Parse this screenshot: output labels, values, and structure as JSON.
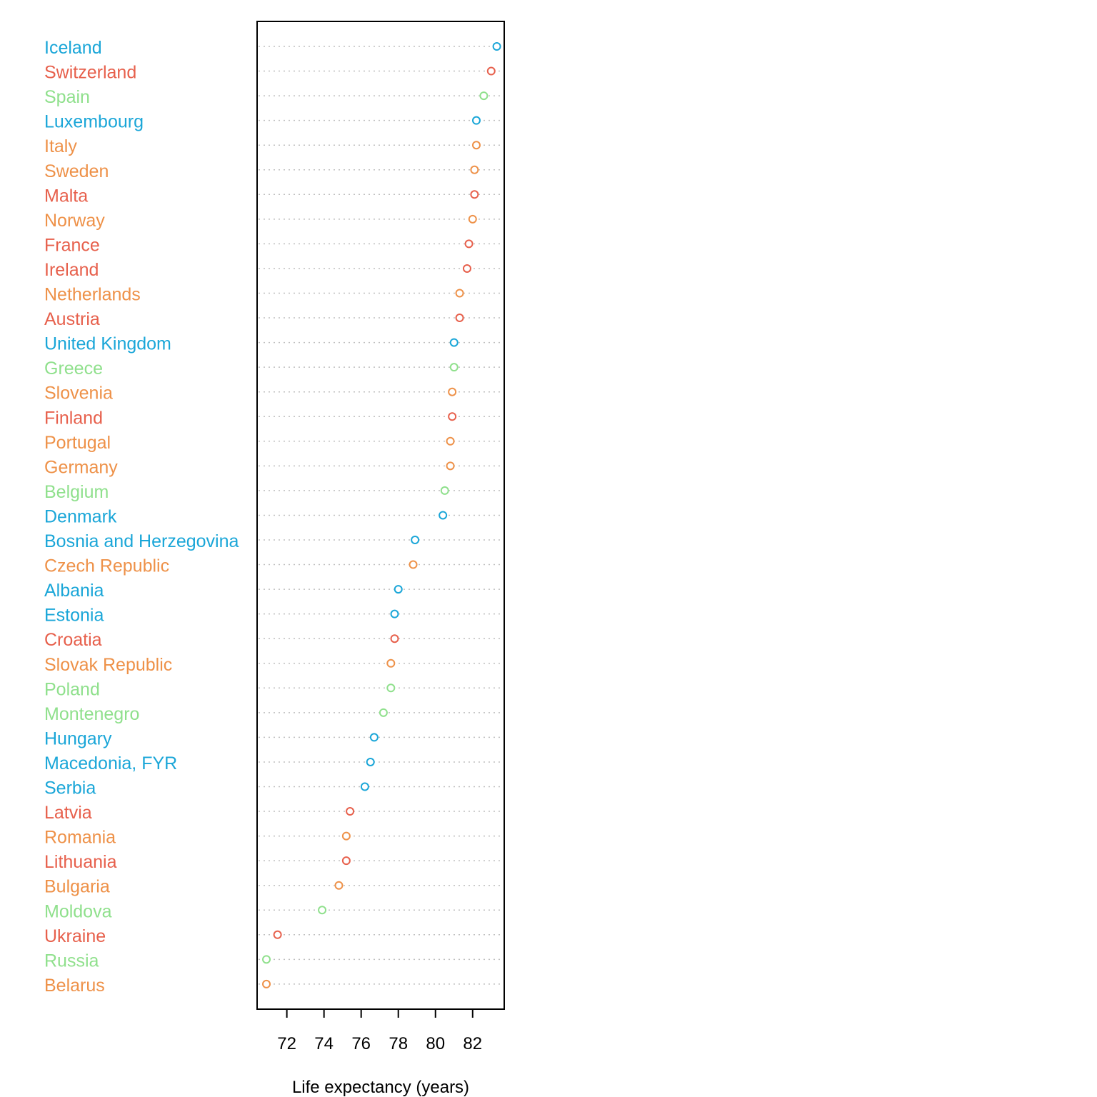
{
  "chart_data": {
    "type": "scatter",
    "subtype": "dotplot",
    "title": "",
    "xlabel": "Life expectancy (years)",
    "ylabel": "",
    "xlim": [
      70.4,
      83.7
    ],
    "xticks": [
      "72",
      "74",
      "76",
      "78",
      "80",
      "82"
    ],
    "grid": "dotted horizontal guide per row",
    "legend": "none",
    "colors": {
      "blue": "#1aa6d8",
      "red": "#e7604c",
      "orange": "#ee9148",
      "green": "#8fe08c",
      "guide": "#bfbfbf",
      "frame": "#000000"
    },
    "points": [
      {
        "country": "Iceland",
        "value": 83.3,
        "color": "blue"
      },
      {
        "country": "Switzerland",
        "value": 83.0,
        "color": "red"
      },
      {
        "country": "Spain",
        "value": 82.6,
        "color": "green"
      },
      {
        "country": "Luxembourg",
        "value": 82.2,
        "color": "blue"
      },
      {
        "country": "Italy",
        "value": 82.2,
        "color": "orange"
      },
      {
        "country": "Sweden",
        "value": 82.1,
        "color": "orange"
      },
      {
        "country": "Malta",
        "value": 82.1,
        "color": "red"
      },
      {
        "country": "Norway",
        "value": 82.0,
        "color": "orange"
      },
      {
        "country": "France",
        "value": 81.8,
        "color": "red"
      },
      {
        "country": "Ireland",
        "value": 81.7,
        "color": "red"
      },
      {
        "country": "Netherlands",
        "value": 81.3,
        "color": "orange"
      },
      {
        "country": "Austria",
        "value": 81.3,
        "color": "red"
      },
      {
        "country": "United Kingdom",
        "value": 81.0,
        "color": "blue"
      },
      {
        "country": "Greece",
        "value": 81.0,
        "color": "green"
      },
      {
        "country": "Slovenia",
        "value": 80.9,
        "color": "orange"
      },
      {
        "country": "Finland",
        "value": 80.9,
        "color": "red"
      },
      {
        "country": "Portugal",
        "value": 80.8,
        "color": "orange"
      },
      {
        "country": "Germany",
        "value": 80.8,
        "color": "orange"
      },
      {
        "country": "Belgium",
        "value": 80.5,
        "color": "green"
      },
      {
        "country": "Denmark",
        "value": 80.4,
        "color": "blue"
      },
      {
        "country": "Bosnia and Herzegovina",
        "value": 78.9,
        "color": "blue"
      },
      {
        "country": "Czech Republic",
        "value": 78.8,
        "color": "orange"
      },
      {
        "country": "Albania",
        "value": 78.0,
        "color": "blue"
      },
      {
        "country": "Estonia",
        "value": 77.8,
        "color": "blue"
      },
      {
        "country": "Croatia",
        "value": 77.8,
        "color": "red"
      },
      {
        "country": "Slovak Republic",
        "value": 77.6,
        "color": "orange"
      },
      {
        "country": "Poland",
        "value": 77.6,
        "color": "green"
      },
      {
        "country": "Montenegro",
        "value": 77.2,
        "color": "green"
      },
      {
        "country": "Hungary",
        "value": 76.7,
        "color": "blue"
      },
      {
        "country": "Macedonia, FYR",
        "value": 76.5,
        "color": "blue"
      },
      {
        "country": "Serbia",
        "value": 76.2,
        "color": "blue"
      },
      {
        "country": "Latvia",
        "value": 75.4,
        "color": "red"
      },
      {
        "country": "Romania",
        "value": 75.2,
        "color": "orange"
      },
      {
        "country": "Lithuania",
        "value": 75.2,
        "color": "red"
      },
      {
        "country": "Bulgaria",
        "value": 74.8,
        "color": "orange"
      },
      {
        "country": "Moldova",
        "value": 73.9,
        "color": "green"
      },
      {
        "country": "Ukraine",
        "value": 71.5,
        "color": "red"
      },
      {
        "country": "Russia",
        "value": 70.9,
        "color": "green"
      },
      {
        "country": "Belarus",
        "value": 70.9,
        "color": "orange"
      }
    ]
  }
}
